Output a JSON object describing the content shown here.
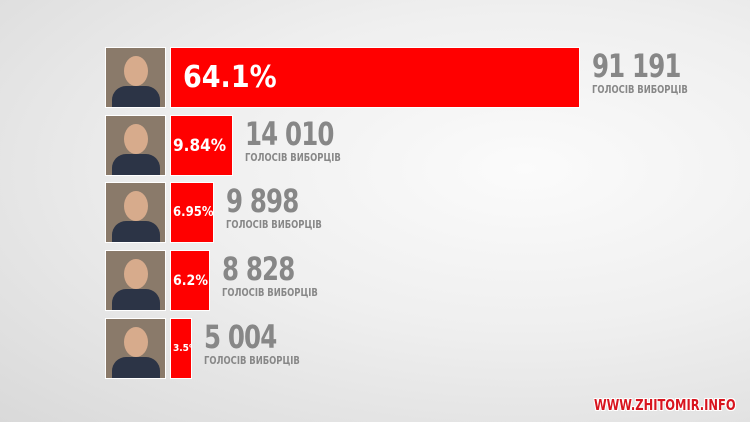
{
  "chart_data": {
    "type": "bar",
    "orientation": "horizontal",
    "bar_color": "#ff0000",
    "unit_label": "ГОЛОСІВ ВИБОРЦІВ",
    "bars": [
      {
        "percent_label": "64.1%",
        "percent": 64.1,
        "votes": "91 191"
      },
      {
        "percent_label": "9.84%",
        "percent": 9.84,
        "votes": "14 010"
      },
      {
        "percent_label": "6.95%",
        "percent": 6.95,
        "votes": "9 898"
      },
      {
        "percent_label": "6.2%",
        "percent": 6.2,
        "votes": "8 828"
      },
      {
        "percent_label": "3.5%",
        "percent": 3.5,
        "votes": "5 004"
      }
    ]
  },
  "watermark": "WWW.ZHITOMIR.INFO"
}
